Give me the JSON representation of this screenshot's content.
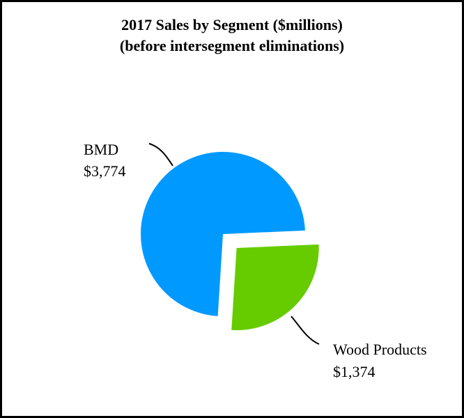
{
  "chart_data": {
    "type": "pie",
    "title": "2017 Sales by Segment ($millions)",
    "subtitle": "(before intersegment eliminations)",
    "categories": [
      "BMD",
      "Wood Products"
    ],
    "values": [
      3774,
      1374
    ],
    "value_labels": [
      "$3,774",
      "$1,374"
    ],
    "colors": [
      "#0099FF",
      "#66CC00"
    ],
    "exploded": [
      "Wood Products"
    ],
    "legend": "none"
  }
}
